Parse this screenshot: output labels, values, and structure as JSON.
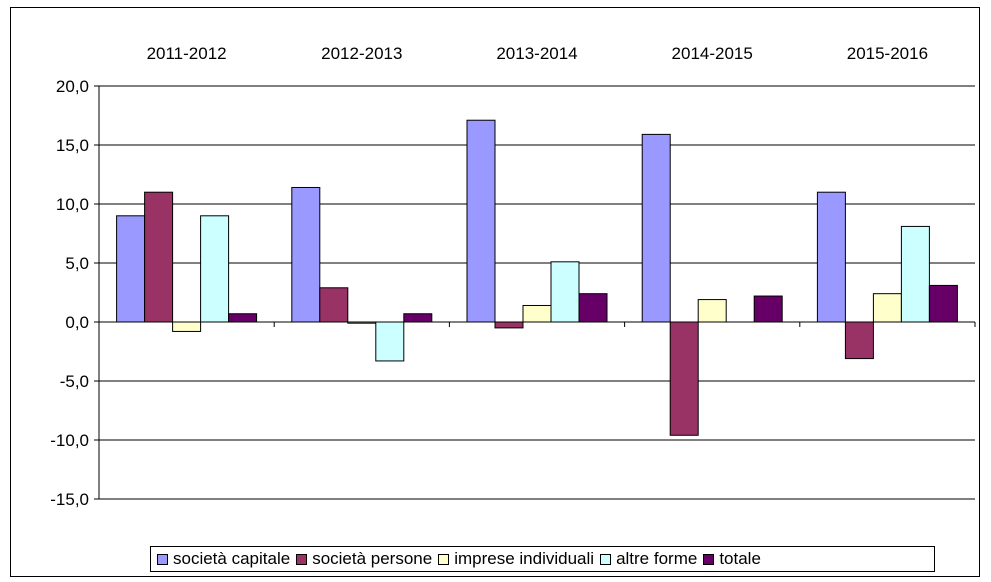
{
  "chart_data": {
    "type": "bar",
    "categories": [
      "2011-2012",
      "2012-2013",
      "2013-2014",
      "2014-2015",
      "2015-2016"
    ],
    "series": [
      {
        "name": "società capitale",
        "color": "#9999FF",
        "values": [
          9.0,
          11.4,
          17.1,
          15.9,
          11.0
        ]
      },
      {
        "name": "società persone",
        "color": "#993366",
        "values": [
          11.0,
          2.9,
          -0.5,
          -9.6,
          -3.1
        ]
      },
      {
        "name": "imprese individuali",
        "color": "#FFFFCC",
        "values": [
          -0.8,
          -0.1,
          1.4,
          1.9,
          2.4
        ]
      },
      {
        "name": "altre forme",
        "color": "#CCFFFF",
        "values": [
          9.0,
          -3.3,
          5.1,
          0.0,
          8.1
        ]
      },
      {
        "name": "totale",
        "color": "#660066",
        "values": [
          0.7,
          0.7,
          2.4,
          2.2,
          3.1
        ]
      }
    ],
    "yticks": [
      "20,0",
      "15,0",
      "10,0",
      "5,0",
      "0,0",
      "-5,0",
      "-10,0",
      "-15,0"
    ],
    "ylim": [
      -15,
      20
    ],
    "category_labels_position": "top",
    "grid": true,
    "legend_position": "bottom"
  }
}
